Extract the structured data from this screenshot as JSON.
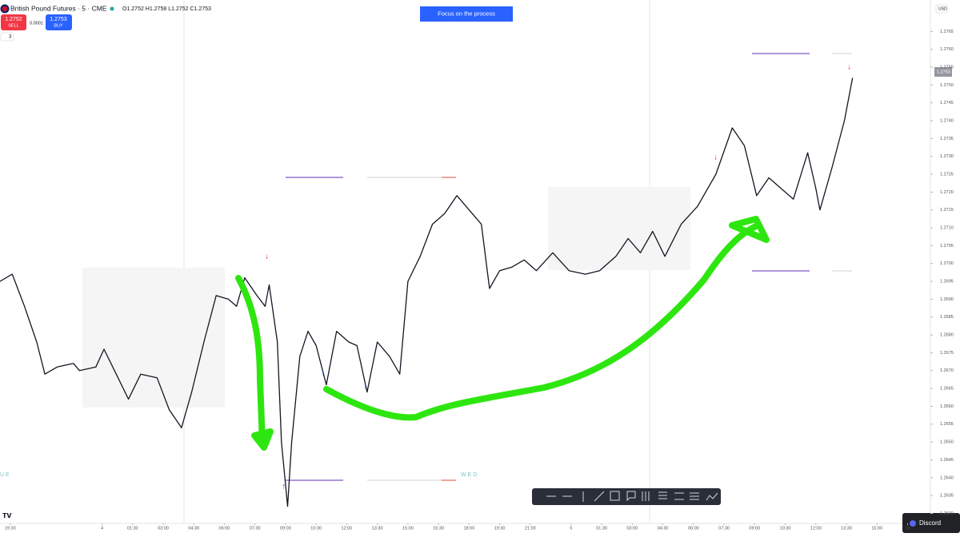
{
  "ui": {
    "symbol": "British Pound Futures · 5 · CME",
    "ohlc": "O1.2752 H1.2758 L1.2752 C1.2753",
    "sell_price": "1.2752",
    "sell": "SELL",
    "spread": "0.0001",
    "buy_price": "1.2753",
    "buy": "BUY",
    "indicator_count": "3",
    "banner": "Focus on the process",
    "currency": "USD",
    "last_price": "1.2753",
    "session_left": "UE",
    "session_right": "WED",
    "discord": "Discord"
  },
  "chart_data": {
    "type": "line",
    "x": [
      19.0,
      19.6,
      20.2,
      20.8,
      21.2,
      21.8,
      22.6,
      22.9,
      23.7,
      24.1,
      24.7,
      25.3,
      25.9,
      26.7,
      27.3,
      27.9,
      28.4,
      29.0,
      29.6,
      30.2,
      30.6,
      31.0,
      31.6,
      32.0,
      32.2,
      32.6,
      32.8,
      33.1,
      33.3,
      33.7,
      34.1,
      34.5,
      35.0,
      35.5,
      36.1,
      36.5,
      37.0,
      37.5,
      38.1,
      38.6,
      39.0,
      39.6,
      40.2,
      40.8,
      41.4,
      42.0,
      42.6,
      43.0,
      43.5,
      44.1,
      44.7,
      45.3,
      46.1,
      46.9,
      47.7,
      48.4,
      49.2,
      49.8,
      50.4,
      51.0,
      51.6,
      52.4,
      53.2,
      54.1,
      54.9,
      55.5,
      56.1,
      56.7,
      57.3,
      57.9,
      58.6,
      59.0,
      59.2,
      59.8,
      60.4,
      60.8
    ],
    "series": [
      {
        "color": "#131722",
        "values": [
          1.2695,
          1.2697,
          1.2688,
          1.2678,
          1.2669,
          1.2671,
          1.2672,
          1.267,
          1.2671,
          1.2676,
          1.2669,
          1.2662,
          1.2669,
          1.2668,
          1.2659,
          1.2654,
          1.2664,
          1.2678,
          1.2691,
          1.269,
          1.2688,
          1.2696,
          1.2691,
          1.2688,
          1.2694,
          1.2678,
          1.265,
          1.2632,
          1.265,
          1.2674,
          1.2681,
          1.2677,
          1.2666,
          1.2681,
          1.2678,
          1.2677,
          1.2664,
          1.2678,
          1.2674,
          1.2669,
          1.2695,
          1.2702,
          1.2711,
          1.2714,
          1.2719,
          1.2715,
          1.2711,
          1.2693,
          1.2698,
          1.2699,
          1.2701,
          1.2698,
          1.2703,
          1.2698,
          1.2697,
          1.2698,
          1.2702,
          1.2707,
          1.2703,
          1.2709,
          1.2702,
          1.2711,
          1.2716,
          1.2725,
          1.2738,
          1.2733,
          1.2719,
          1.2724,
          1.2721,
          1.2718,
          1.2731,
          1.2721,
          1.2715,
          1.2727,
          1.274,
          1.2752
        ]
      }
    ],
    "xlim": [
      19,
      64.5
    ],
    "ylim": [
      1.26272,
      1.27738
    ],
    "xticks": [
      {
        "value": 19.5,
        "label": "19:30"
      },
      {
        "value": 24,
        "label": "4"
      },
      {
        "value": 25.5,
        "label": "01:30"
      },
      {
        "value": 27,
        "label": "03:00"
      },
      {
        "value": 28.5,
        "label": "04:30"
      },
      {
        "value": 30,
        "label": "06:00"
      },
      {
        "value": 31.5,
        "label": "07:30"
      },
      {
        "value": 33,
        "label": "09:00"
      },
      {
        "value": 34.5,
        "label": "10:30"
      },
      {
        "value": 36,
        "label": "12:00"
      },
      {
        "value": 37.5,
        "label": "13:30"
      },
      {
        "value": 39,
        "label": "15:00"
      },
      {
        "value": 40.5,
        "label": "16:30"
      },
      {
        "value": 42,
        "label": "18:00"
      },
      {
        "value": 43.5,
        "label": "19:30"
      },
      {
        "value": 45,
        "label": "21:00"
      },
      {
        "value": 47,
        "label": "5"
      },
      {
        "value": 48.5,
        "label": "01:30"
      },
      {
        "value": 50,
        "label": "03:00"
      },
      {
        "value": 51.5,
        "label": "04:30"
      },
      {
        "value": 53,
        "label": "06:00"
      },
      {
        "value": 54.5,
        "label": "07:30"
      },
      {
        "value": 56,
        "label": "09:00"
      },
      {
        "value": 57.5,
        "label": "10:30"
      },
      {
        "value": 59,
        "label": "12:00"
      },
      {
        "value": 60.5,
        "label": "13:30"
      },
      {
        "value": 62,
        "label": "15:00"
      },
      {
        "value": 63.5,
        "label": "16"
      }
    ],
    "yticks": [
      {
        "value": 1.2765,
        "label": "1.2765"
      },
      {
        "value": 1.276,
        "label": "1.2760"
      },
      {
        "value": 1.2755,
        "label": "1.2755"
      },
      {
        "value": 1.275,
        "label": "1.2750"
      },
      {
        "value": 1.2745,
        "label": "1.2745"
      },
      {
        "value": 1.274,
        "label": "1.2740"
      },
      {
        "value": 1.2735,
        "label": "1.2735"
      },
      {
        "value": 1.273,
        "label": "1.2730"
      },
      {
        "value": 1.2725,
        "label": "1.2725"
      },
      {
        "value": 1.272,
        "label": "1.2720"
      },
      {
        "value": 1.2715,
        "label": "1.2715"
      },
      {
        "value": 1.271,
        "label": "1.2710"
      },
      {
        "value": 1.2705,
        "label": "1.2705"
      },
      {
        "value": 1.27,
        "label": "1.2700"
      },
      {
        "value": 1.2695,
        "label": "1.2695"
      },
      {
        "value": 1.269,
        "label": "1.2690"
      },
      {
        "value": 1.2685,
        "label": "1.2685"
      },
      {
        "value": 1.268,
        "label": "1.2680"
      },
      {
        "value": 1.2675,
        "label": "1.2675"
      },
      {
        "value": 1.267,
        "label": "1.2670"
      },
      {
        "value": 1.2665,
        "label": "1.2665"
      },
      {
        "value": 1.266,
        "label": "1.2660"
      },
      {
        "value": 1.2655,
        "label": "1.2655"
      },
      {
        "value": 1.265,
        "label": "1.2650"
      },
      {
        "value": 1.2645,
        "label": "1.2645"
      },
      {
        "value": 1.264,
        "label": "1.2640"
      },
      {
        "value": 1.2635,
        "label": "1.2635"
      },
      {
        "value": 1.263,
        "label": "1.2630"
      }
    ],
    "grid": false
  }
}
